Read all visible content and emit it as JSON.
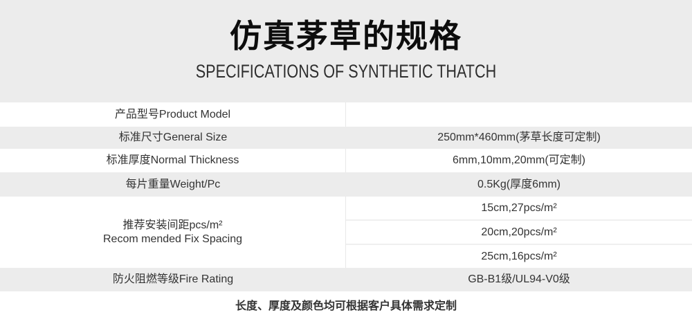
{
  "colors": {
    "band_gray": "#ececec",
    "divider": "#e8e8e8",
    "subrow_divider": "#efefef",
    "title_text": "#0d0d0d",
    "body_text": "#333333",
    "background": "#ffffff"
  },
  "header": {
    "title": "仿真茅草的规格",
    "subtitle": "SPECIFICATIONS OF SYNTHETIC THATCH"
  },
  "table": {
    "rows": [
      {
        "label": "产品型号Product Model",
        "value": ""
      },
      {
        "label": "标准尺寸General Size",
        "value": "250mm*460mm(茅草长度可定制)"
      },
      {
        "label": "标准厚度Normal Thickness",
        "value": "6mm,10mm,20mm(可定制)"
      },
      {
        "label": "每片重量Weight/Pc",
        "value": "0.5Kg(厚度6mm)"
      },
      {
        "label_line1": "推荐安装间距pcs/m²",
        "label_line2": "Recom mended Fix Spacing",
        "values": [
          "15cm,27pcs/m²",
          "20cm,20pcs/m²",
          "25cm,16pcs/m²"
        ]
      },
      {
        "label": "防火阻燃等级Fire Rating",
        "value": "GB-B1级/UL94-V0级"
      }
    ]
  },
  "footer": {
    "note": "长度、厚度及颜色均可根据客户具体需求定制"
  }
}
